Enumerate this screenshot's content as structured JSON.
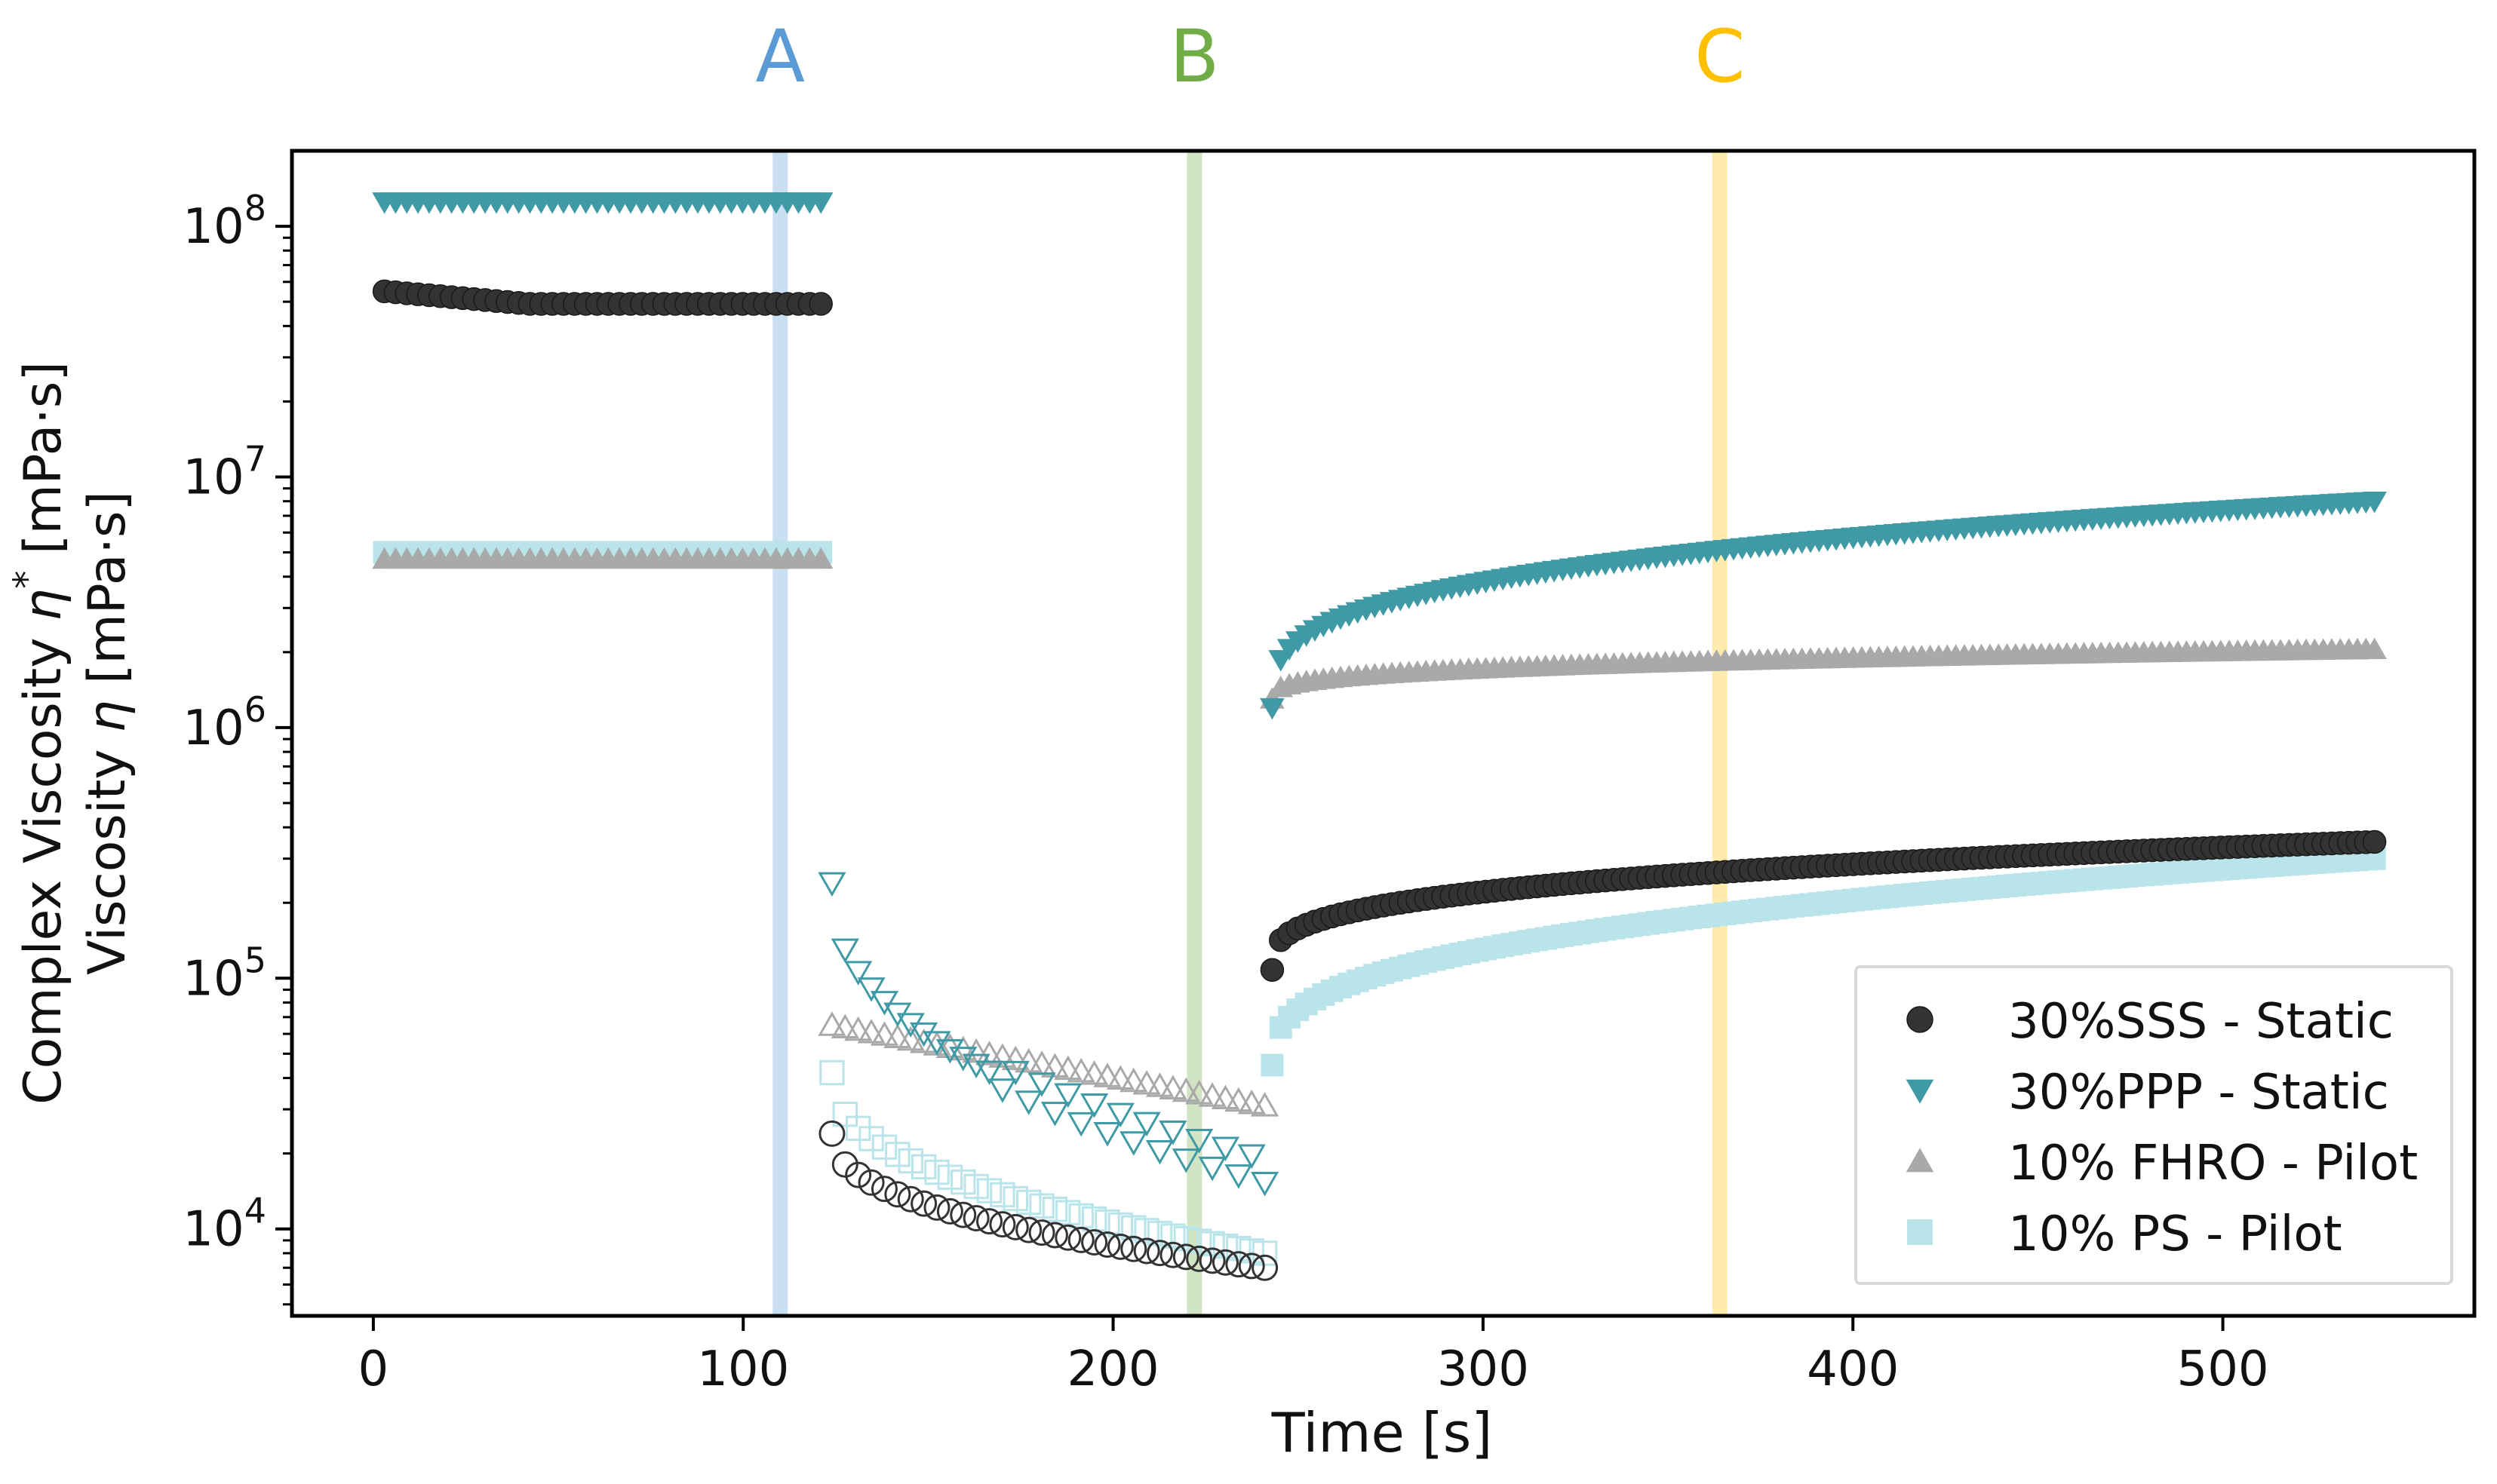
{
  "chart_data": {
    "type": "scatter",
    "xlabel": "Time [s]",
    "ylabel_line1": "Complex Viscosity η* [mPa·s]",
    "ylabel_line2": "Viscosity η [mPa·s]",
    "ylabel_parts": {
      "l1_prefix": "Complex Viscosity ",
      "l1_symbol": "η",
      "l1_sup": "*",
      "l1_suffix": " [mPa·s]",
      "l2_prefix": "Viscosity ",
      "l2_symbol": "η",
      "l2_suffix": " [mPa·s]"
    },
    "xlim": [
      -22,
      568
    ],
    "ylim": [
      4500,
      200000000
    ],
    "yscale": "log",
    "x_ticks": [
      0,
      100,
      200,
      300,
      400,
      500
    ],
    "x_tick_labels": [
      "0",
      "100",
      "200",
      "300",
      "400",
      "500"
    ],
    "y_ticks": [
      10000,
      100000,
      1000000,
      10000000,
      100000000
    ],
    "y_tick_labels": [
      {
        "base": "10",
        "exp": "4"
      },
      {
        "base": "10",
        "exp": "5"
      },
      {
        "base": "10",
        "exp": "6"
      },
      {
        "base": "10",
        "exp": "7"
      },
      {
        "base": "10",
        "exp": "8"
      }
    ],
    "markers": [
      {
        "label": "A",
        "x": 110,
        "color": "#5b9bd5"
      },
      {
        "label": "B",
        "x": 222,
        "color": "#70ad47"
      },
      {
        "label": "C",
        "x": 364,
        "color": "#ffc000"
      }
    ],
    "phases": [
      {
        "name": "static",
        "t_start": 3,
        "t_end": 121,
        "filled": true
      },
      {
        "name": "shear",
        "t_start": 124,
        "t_end": 241,
        "filled": false
      },
      {
        "name": "recovery",
        "t_start": 243,
        "t_end": 541,
        "filled": true
      }
    ],
    "series": [
      {
        "name": "30%SSS - Static",
        "marker": "circle",
        "color": "#333333",
        "static": {
          "start": 55000000,
          "end": 49000000
        },
        "shear": {
          "start": 24000,
          "end": 7000
        },
        "recovery": {
          "start": 108000,
          "end": 350000
        }
      },
      {
        "name": "30%PPP - Static",
        "marker": "triangle-down",
        "color": "#3f9aa6",
        "static": {
          "start": 125000000,
          "end": 125000000
        },
        "shear": {
          "start": 240000,
          "end": 17000
        },
        "recovery": {
          "start": 1200000,
          "end": 8000000
        }
      },
      {
        "name": "10% FHRO - Pilot",
        "marker": "triangle-up",
        "color": "#a9a9a9",
        "static": {
          "start": 4700000,
          "end": 4700000
        },
        "shear": {
          "start": 65000,
          "end": 31000
        },
        "recovery": {
          "start": 1300000,
          "end": 2050000
        }
      },
      {
        "name": "10% PS - Pilot",
        "marker": "square",
        "color": "#b8e4ea",
        "static": {
          "start": 5000000,
          "end": 5000000
        },
        "shear": {
          "start": 42000,
          "end": 8000
        },
        "recovery": {
          "start": 45000,
          "end": 300000
        }
      }
    ],
    "legend_position": "lower-right"
  }
}
